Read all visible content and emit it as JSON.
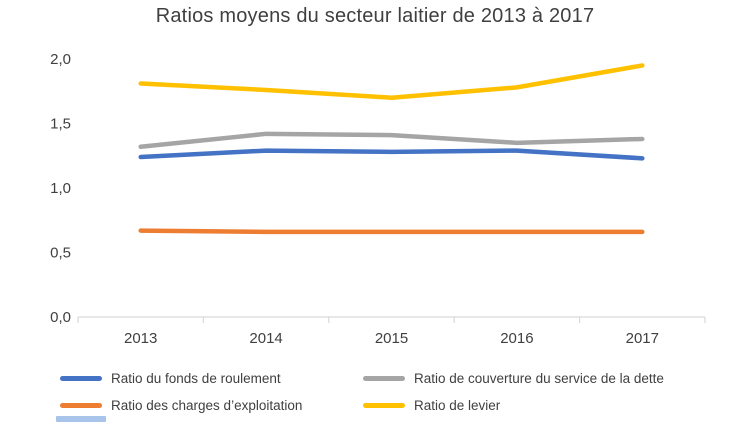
{
  "chart_data": {
    "type": "line",
    "title": "Ratios moyens du secteur laitier de 2013 à 2017",
    "categories": [
      "2013",
      "2014",
      "2015",
      "2016",
      "2017"
    ],
    "series": [
      {
        "name": "Ratio du fonds de roulement",
        "color": "#4472C4",
        "values": [
          1.24,
          1.29,
          1.28,
          1.29,
          1.23
        ]
      },
      {
        "name": "Ratio de couverture du service de la dette",
        "color": "#A5A5A5",
        "values": [
          1.32,
          1.42,
          1.41,
          1.35,
          1.38
        ]
      },
      {
        "name": "Ratio des charges d’exploitation",
        "color": "#ED7D31",
        "values": [
          0.67,
          0.66,
          0.66,
          0.66,
          0.66
        ]
      },
      {
        "name": "Ratio de levier",
        "color": "#FFC000",
        "values": [
          1.81,
          1.76,
          1.7,
          1.78,
          1.95
        ]
      }
    ],
    "y_ticks": [
      "0,0",
      "0,5",
      "1,0",
      "1,5",
      "2,0"
    ],
    "y_tick_values": [
      0,
      0.5,
      1.0,
      1.5,
      2.0
    ],
    "ylim": [
      0,
      2.0
    ],
    "xlabel": "",
    "ylabel": "",
    "grid": false,
    "legend_position": "bottom",
    "axis_color": "#D9D9D9",
    "text_color": "#404040"
  },
  "decor": {
    "bottom_left_bar_color": "#A9C4EA"
  }
}
